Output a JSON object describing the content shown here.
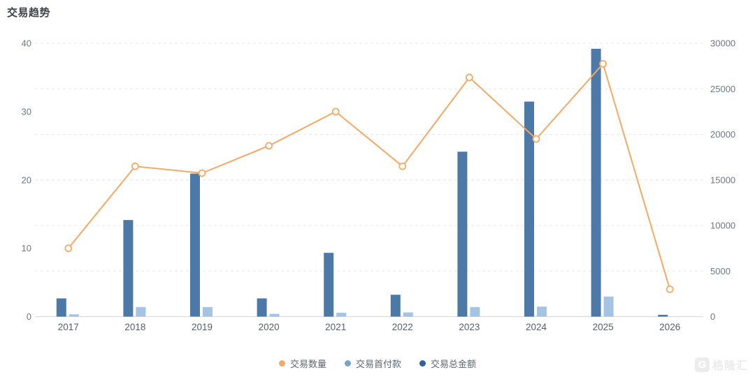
{
  "title": "交易趋势",
  "watermark": {
    "logo": "G",
    "text": "格隆汇"
  },
  "colors": {
    "line": "#f5a963",
    "bar_total": "#4d79a9",
    "bar_down": "#a5c3e2",
    "grid": "#e4e7ec",
    "axis_line": "#d4d8dd",
    "axis_text": "#6e7781",
    "x_text": "#555e68",
    "marker_fill": "#ffffff"
  },
  "chart_data": {
    "type": "combo",
    "title": "交易趋势",
    "categories": [
      "2017",
      "2018",
      "2019",
      "2020",
      "2021",
      "2022",
      "2023",
      "2024",
      "2025",
      "2026"
    ],
    "series": [
      {
        "name": "交易数量",
        "type": "line",
        "axis": "left",
        "color": "#f5a963",
        "values": [
          10,
          22,
          21,
          25,
          30,
          22,
          35,
          26,
          37,
          4
        ]
      },
      {
        "name": "交易首付款",
        "type": "bar",
        "axis": "right",
        "color": "#a5c3e2",
        "values": [
          250,
          1050,
          1050,
          300,
          430,
          460,
          1050,
          1100,
          2200,
          0
        ]
      },
      {
        "name": "交易总金额",
        "type": "bar",
        "axis": "right",
        "color": "#4d79a9",
        "values": [
          2000,
          10600,
          15700,
          2000,
          7000,
          2400,
          18100,
          23600,
          29400,
          200
        ]
      }
    ],
    "left_axis": {
      "min": 0,
      "max": 40,
      "ticks": [
        0,
        10,
        20,
        30,
        40
      ]
    },
    "right_axis": {
      "min": 0,
      "max": 30000,
      "ticks": [
        0,
        5000,
        10000,
        15000,
        20000,
        25000,
        30000
      ]
    },
    "legend_position": "bottom",
    "grid_dashed": true
  },
  "legend": {
    "items": [
      {
        "label": "交易数量",
        "dot": "#f2ab66"
      },
      {
        "label": "交易首付款",
        "dot": "#78a3cd"
      },
      {
        "label": "交易总金额",
        "dot": "#30619b"
      }
    ]
  }
}
